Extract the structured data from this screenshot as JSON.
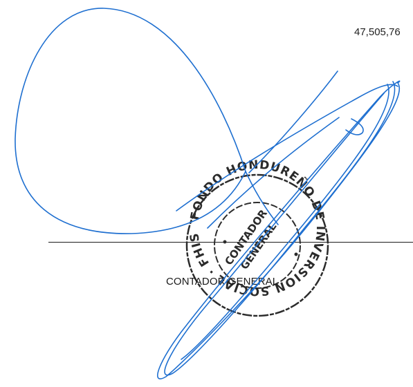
{
  "document": {
    "amount": "47,505,76",
    "signer_title": "CONTADOR GENERAL"
  },
  "stamp": {
    "outer_text": "FONDO HONDUREÑO DE INVERSION SOCIAL · FHIS ·",
    "center_line1": "CONTADOR",
    "center_line2": "GENERAL"
  },
  "colors": {
    "ink": "#1a1a1a",
    "signature": "#1e6fd0",
    "stamp": "#2b2b2b"
  }
}
